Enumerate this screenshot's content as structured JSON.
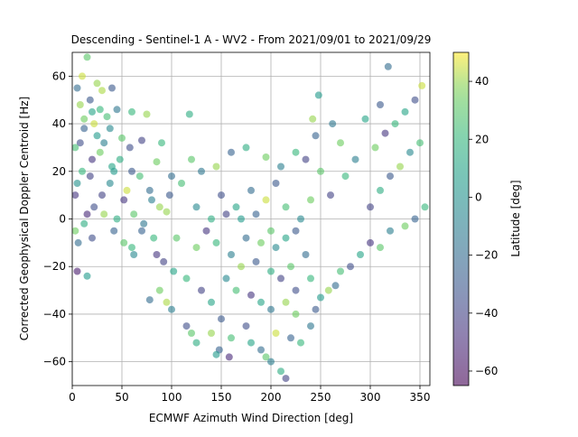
{
  "chart_data": {
    "type": "scatter",
    "title": "Descending - Sentinel-1 A - WV2 - From 2021/09/01 to 2021/09/29",
    "xlabel": "ECMWF Azimuth Wind Direction [deg]",
    "ylabel": "Corrected Geophysical Doppler Centroid [Hz]",
    "xlim": [
      0,
      360
    ],
    "ylim": [
      -70,
      70
    ],
    "xticks": [
      0,
      50,
      100,
      150,
      200,
      250,
      300,
      350
    ],
    "yticks": [
      -60,
      -40,
      -20,
      0,
      20,
      40,
      60
    ],
    "grid": true,
    "marker_alpha": 0.6,
    "colorbar": {
      "label": "Latitude [deg]",
      "colormap": "viridis",
      "range": [
        -65,
        50
      ],
      "ticks": [
        -60,
        -40,
        -20,
        0,
        20,
        40
      ]
    },
    "points": [
      [
        15,
        68,
        30
      ],
      [
        10,
        60,
        45
      ],
      [
        5,
        55,
        -20
      ],
      [
        25,
        57,
        40
      ],
      [
        30,
        54,
        42
      ],
      [
        40,
        55,
        -30
      ],
      [
        20,
        45,
        10
      ],
      [
        12,
        42,
        35
      ],
      [
        35,
        43,
        25
      ],
      [
        45,
        46,
        -15
      ],
      [
        60,
        45,
        20
      ],
      [
        75,
        44,
        40
      ],
      [
        118,
        44,
        15
      ],
      [
        8,
        32,
        -35
      ],
      [
        25,
        35,
        5
      ],
      [
        50,
        34,
        30
      ],
      [
        70,
        33,
        -40
      ],
      [
        90,
        32,
        20
      ],
      [
        20,
        25,
        -45
      ],
      [
        40,
        22,
        10
      ],
      [
        60,
        20,
        -30
      ],
      [
        85,
        24,
        35
      ],
      [
        100,
        18,
        -20
      ],
      [
        5,
        15,
        0
      ],
      [
        30,
        10,
        -40
      ],
      [
        55,
        12,
        45
      ],
      [
        80,
        8,
        -10
      ],
      [
        110,
        15,
        25
      ],
      [
        15,
        2,
        -50
      ],
      [
        45,
        0,
        15
      ],
      [
        70,
        -5,
        -25
      ],
      [
        95,
        3,
        40
      ],
      [
        125,
        5,
        -5
      ],
      [
        20,
        -8,
        -35
      ],
      [
        60,
        -12,
        20
      ],
      [
        85,
        -15,
        -45
      ],
      [
        105,
        -8,
        30
      ],
      [
        5,
        -22,
        -55
      ],
      [
        15,
        -24,
        5
      ],
      [
        88,
        -30,
        35
      ],
      [
        78,
        -34,
        -20
      ],
      [
        95,
        -35,
        42
      ],
      [
        100,
        -38,
        -10
      ],
      [
        115,
        -25,
        20
      ],
      [
        130,
        -30,
        -40
      ],
      [
        140,
        -35,
        10
      ],
      [
        150,
        -42,
        -30
      ],
      [
        115,
        -45,
        -35
      ],
      [
        120,
        -48,
        30
      ],
      [
        125,
        -52,
        15
      ],
      [
        140,
        -48,
        40
      ],
      [
        148,
        -55,
        -25
      ],
      [
        145,
        -57,
        5
      ],
      [
        158,
        -58,
        -50
      ],
      [
        160,
        -50,
        25
      ],
      [
        175,
        -45,
        -35
      ],
      [
        180,
        -52,
        10
      ],
      [
        190,
        -55,
        -20
      ],
      [
        195,
        -58,
        30
      ],
      [
        200,
        -60,
        -10
      ],
      [
        210,
        -64,
        15
      ],
      [
        215,
        -67,
        -40
      ],
      [
        205,
        -48,
        45
      ],
      [
        220,
        -50,
        -25
      ],
      [
        230,
        -52,
        20
      ],
      [
        240,
        -45,
        -15
      ],
      [
        225,
        -40,
        35
      ],
      [
        245,
        -38,
        -30
      ],
      [
        250,
        -33,
        5
      ],
      [
        258,
        -30,
        40
      ],
      [
        265,
        -28,
        -20
      ],
      [
        270,
        -22,
        25
      ],
      [
        280,
        -20,
        -35
      ],
      [
        290,
        -15,
        10
      ],
      [
        300,
        -10,
        -45
      ],
      [
        310,
        -12,
        30
      ],
      [
        320,
        -5,
        -10
      ],
      [
        335,
        -3,
        35
      ],
      [
        345,
        0,
        -25
      ],
      [
        355,
        5,
        20
      ],
      [
        300,
        5,
        -40
      ],
      [
        310,
        12,
        15
      ],
      [
        320,
        18,
        -30
      ],
      [
        330,
        22,
        40
      ],
      [
        340,
        28,
        -5
      ],
      [
        350,
        32,
        25
      ],
      [
        315,
        36,
        -45
      ],
      [
        325,
        40,
        20
      ],
      [
        335,
        45,
        10
      ],
      [
        345,
        50,
        -35
      ],
      [
        352,
        56,
        45
      ],
      [
        318,
        64,
        -20
      ],
      [
        305,
        30,
        35
      ],
      [
        285,
        25,
        -10
      ],
      [
        275,
        18,
        20
      ],
      [
        260,
        10,
        -40
      ],
      [
        250,
        20,
        30
      ],
      [
        245,
        35,
        -25
      ],
      [
        242,
        42,
        40
      ],
      [
        248,
        52,
        5
      ],
      [
        262,
        40,
        -15
      ],
      [
        270,
        32,
        35
      ],
      [
        295,
        42,
        10
      ],
      [
        310,
        48,
        -30
      ],
      [
        175,
        30,
        15
      ],
      [
        160,
        28,
        -25
      ],
      [
        195,
        26,
        35
      ],
      [
        210,
        22,
        -10
      ],
      [
        225,
        28,
        20
      ],
      [
        235,
        25,
        -40
      ],
      [
        145,
        22,
        40
      ],
      [
        130,
        20,
        -15
      ],
      [
        120,
        25,
        30
      ],
      [
        150,
        10,
        -35
      ],
      [
        165,
        5,
        10
      ],
      [
        180,
        12,
        -20
      ],
      [
        195,
        8,
        45
      ],
      [
        205,
        15,
        -30
      ],
      [
        215,
        5,
        25
      ],
      [
        230,
        0,
        -5
      ],
      [
        240,
        8,
        35
      ],
      [
        135,
        -5,
        -45
      ],
      [
        145,
        -10,
        20
      ],
      [
        160,
        -15,
        -10
      ],
      [
        170,
        -20,
        40
      ],
      [
        185,
        -18,
        -30
      ],
      [
        200,
        -22,
        15
      ],
      [
        210,
        -25,
        -40
      ],
      [
        220,
        -20,
        30
      ],
      [
        235,
        -15,
        -20
      ],
      [
        125,
        -12,
        35
      ],
      [
        155,
        -25,
        -5
      ],
      [
        165,
        -30,
        25
      ],
      [
        180,
        -32,
        -45
      ],
      [
        190,
        -35,
        10
      ],
      [
        200,
        -38,
        -15
      ],
      [
        215,
        -35,
        40
      ],
      [
        225,
        -30,
        -35
      ],
      [
        240,
        -25,
        20
      ],
      [
        170,
        0,
        5
      ],
      [
        185,
        2,
        -25
      ],
      [
        200,
        -5,
        30
      ],
      [
        155,
        2,
        -40
      ],
      [
        140,
        0,
        15
      ],
      [
        175,
        -8,
        -20
      ],
      [
        190,
        -10,
        35
      ],
      [
        205,
        -12,
        -5
      ],
      [
        215,
        -8,
        10
      ],
      [
        225,
        -5,
        -30
      ],
      [
        10,
        20,
        20
      ],
      [
        18,
        18,
        -40
      ],
      [
        28,
        28,
        35
      ],
      [
        38,
        15,
        -5
      ],
      [
        48,
        25,
        15
      ],
      [
        58,
        30,
        -35
      ],
      [
        68,
        18,
        25
      ],
      [
        78,
        12,
        -20
      ],
      [
        88,
        5,
        40
      ],
      [
        98,
        10,
        -30
      ],
      [
        12,
        38,
        -25
      ],
      [
        22,
        40,
        45
      ],
      [
        32,
        32,
        -10
      ],
      [
        42,
        20,
        5
      ],
      [
        52,
        8,
        -45
      ],
      [
        62,
        2,
        30
      ],
      [
        72,
        -2,
        -15
      ],
      [
        82,
        -8,
        20
      ],
      [
        92,
        -18,
        -40
      ],
      [
        102,
        -22,
        10
      ],
      [
        8,
        48,
        40
      ],
      [
        18,
        50,
        -30
      ],
      [
        28,
        46,
        20
      ],
      [
        38,
        38,
        -5
      ],
      [
        3,
        30,
        25
      ],
      [
        3,
        10,
        -45
      ],
      [
        3,
        -5,
        35
      ],
      [
        6,
        -10,
        -20
      ],
      [
        12,
        -2,
        15
      ],
      [
        22,
        5,
        -35
      ],
      [
        32,
        2,
        40
      ],
      [
        42,
        -5,
        -25
      ],
      [
        52,
        -10,
        30
      ],
      [
        62,
        -15,
        -5
      ]
    ]
  }
}
